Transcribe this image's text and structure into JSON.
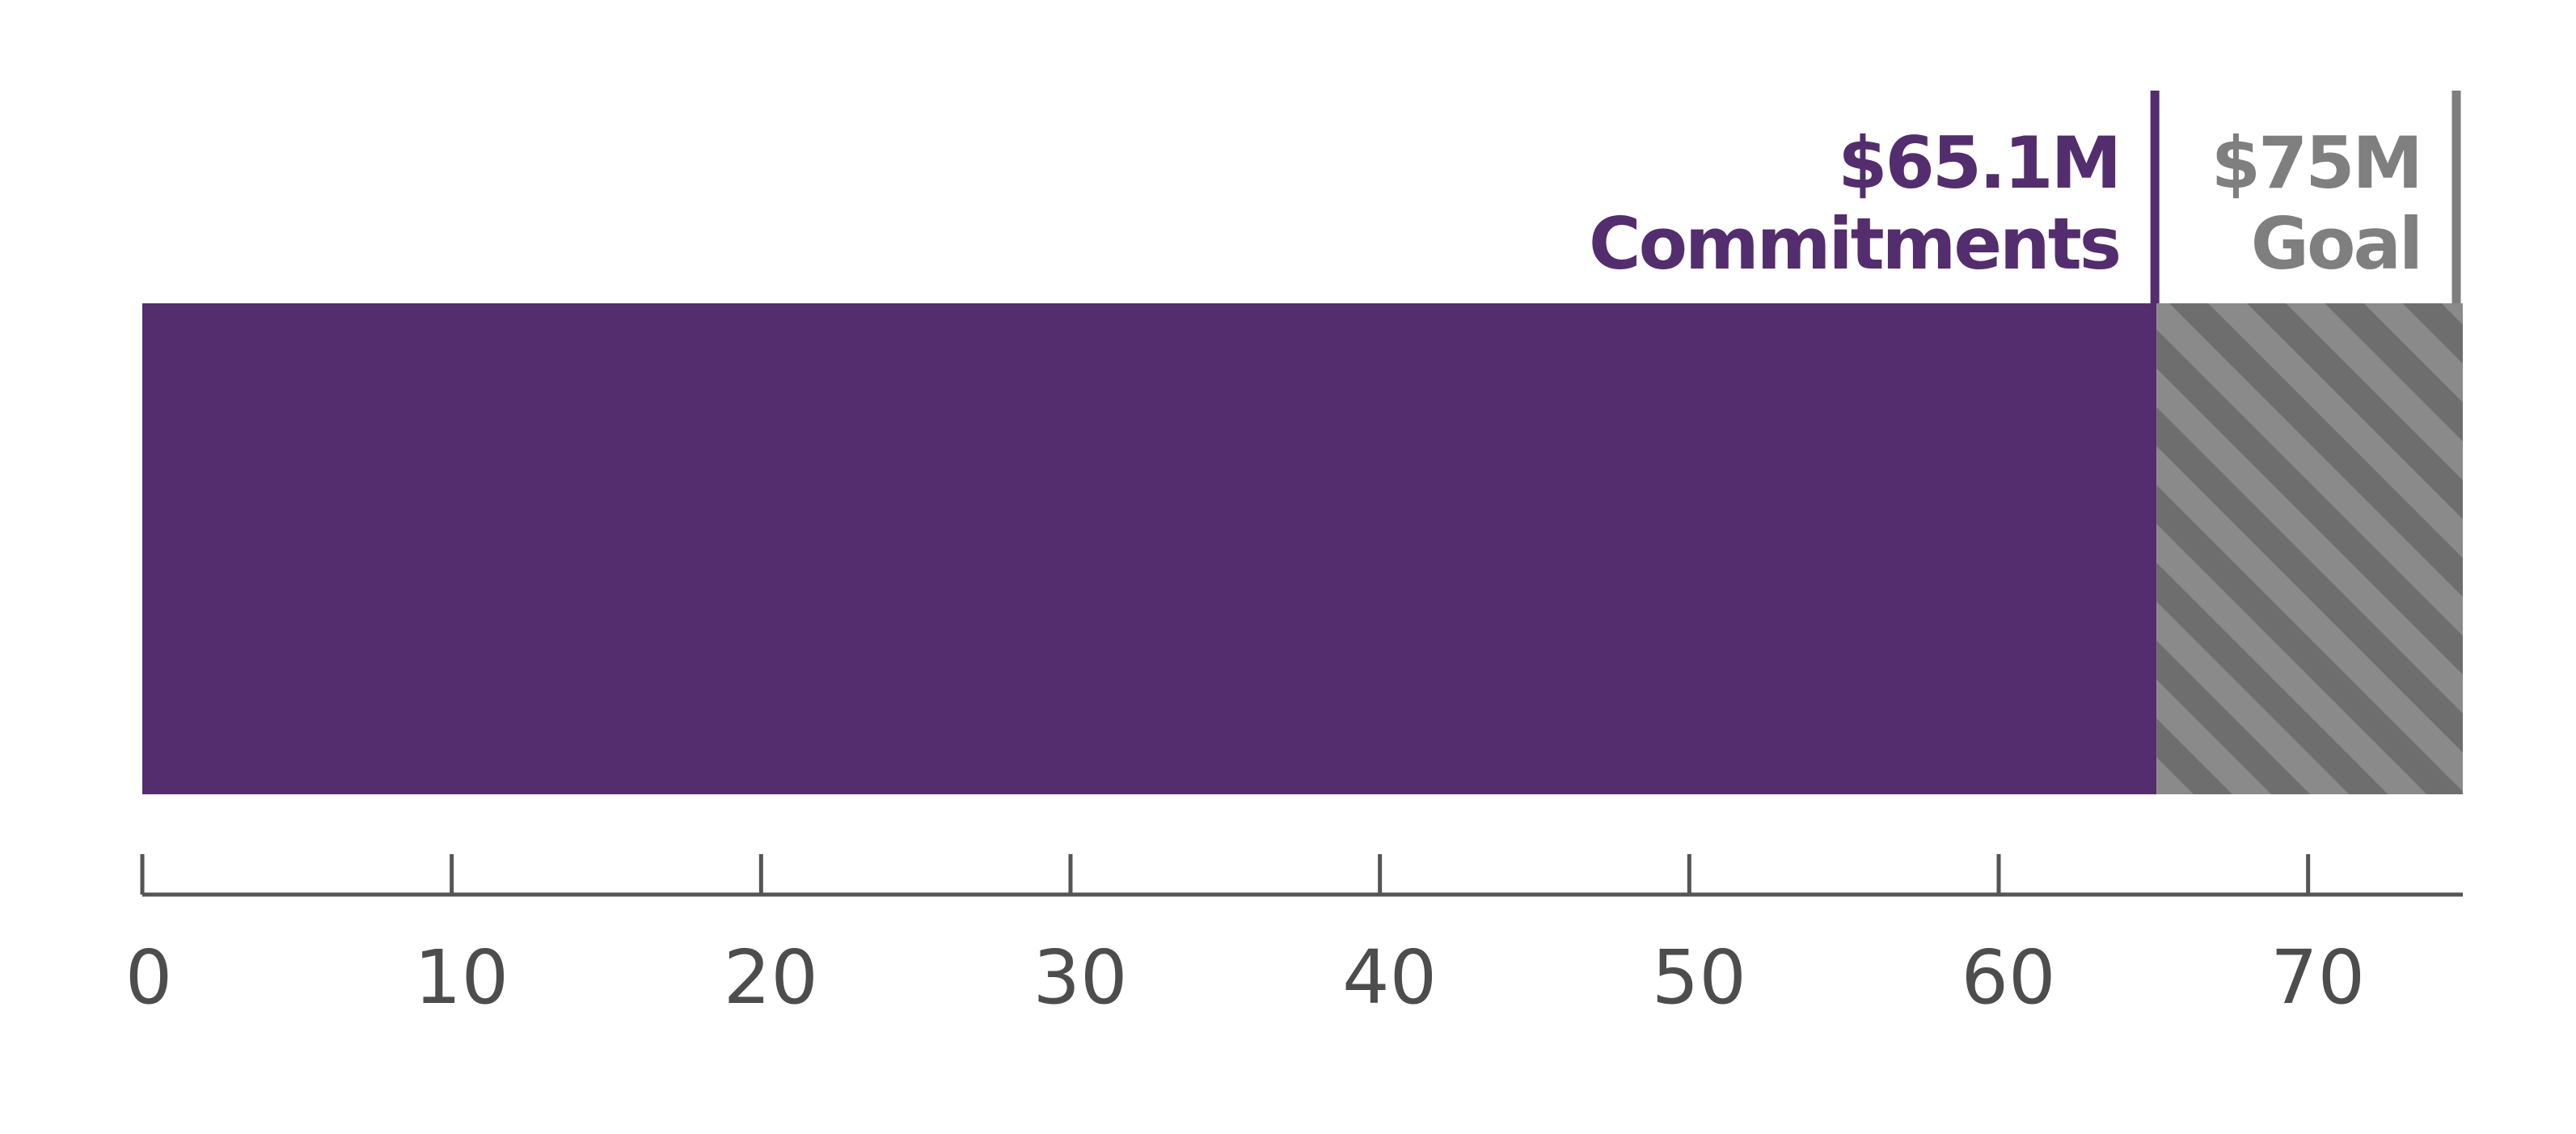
{
  "colors": {
    "commitments": "#532d6d",
    "goal_stripe_dark": "#6e6e6e",
    "goal_stripe_light": "#8a8a8a",
    "goal_text": "#7f7f7f",
    "axis": "#555555",
    "tick_text": "#4d4d4d"
  },
  "chart_data": {
    "type": "bar",
    "orientation": "horizontal",
    "stacked": true,
    "series": [
      {
        "values": [
          65.1
        ],
        "pattern": "solid"
      },
      {
        "values": [
          9.9
        ],
        "pattern": "diagonal-stripes"
      }
    ],
    "xlim": [
      0,
      75
    ],
    "x_ticks": [
      0,
      10,
      20,
      30,
      40,
      50,
      60,
      70
    ],
    "x_tick_labels": [
      "0",
      "10",
      "20",
      "30",
      "40",
      "50",
      "60",
      "70"
    ],
    "grid": false,
    "annotations": [
      {
        "x": 65.1,
        "value_text": "$65.1M",
        "label_text": "Commitments",
        "color": "#532d6d"
      },
      {
        "x": 75,
        "value_text": "$75M",
        "label_text": "Goal",
        "color": "#7f7f7f"
      }
    ]
  }
}
